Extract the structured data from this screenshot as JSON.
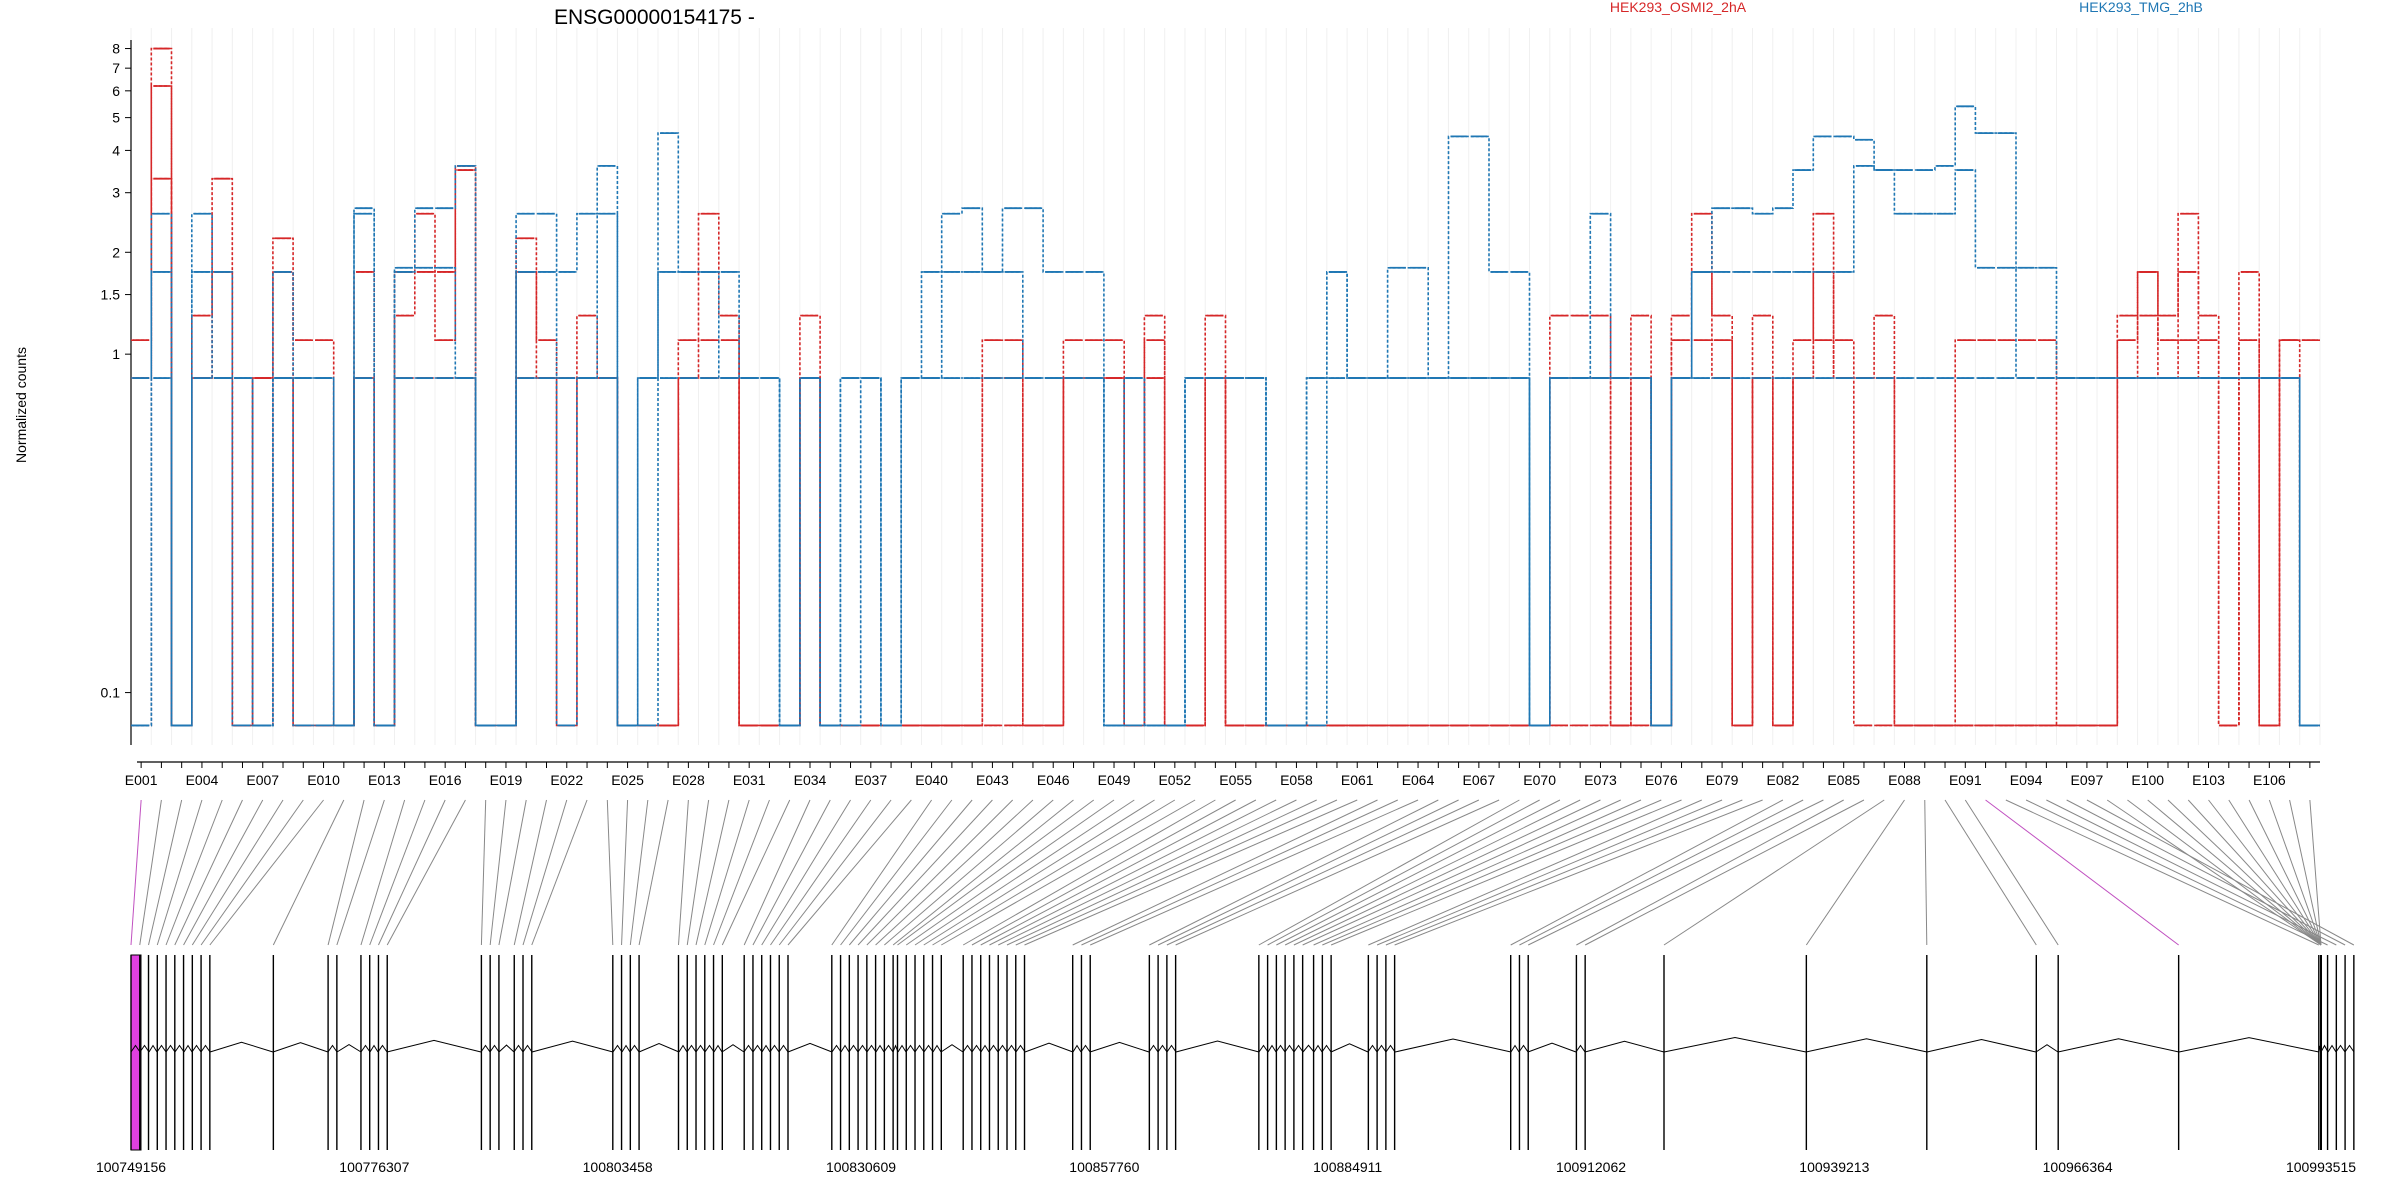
{
  "chart_data": {
    "type": "line",
    "title": "ENSG00000154175 -",
    "ylabel": "Normalized counts",
    "y_scale": "log",
    "yticks": [
      0.1,
      1,
      1.5,
      2,
      3,
      4,
      5,
      6,
      7,
      8
    ],
    "ytick_labels": [
      "0.1",
      "1",
      "1.5",
      "2",
      "3",
      "4",
      "5",
      "6",
      "7",
      "8"
    ],
    "series_colors": [
      "#d62728",
      "#1f77b4"
    ],
    "legend": [
      {
        "name": "HEK293_OSMI2_2hA",
        "color": "#d62728"
      },
      {
        "name": "HEK293_TMG_2hB",
        "color": "#1f77b4"
      }
    ],
    "exon_labels": [
      "E001",
      "E004",
      "E007",
      "E010",
      "E013",
      "E016",
      "E019",
      "E022",
      "E025",
      "E028",
      "E031",
      "E034",
      "E037",
      "E040",
      "E043",
      "E046",
      "E049",
      "E052",
      "E055",
      "E058",
      "E061",
      "E064",
      "E067",
      "E070",
      "E073",
      "E076",
      "E079",
      "E082",
      "E085",
      "E088",
      "E091",
      "E094",
      "E097",
      "E100",
      "E103",
      "E106"
    ],
    "genomic_ticks": [
      "100749156",
      "100776307",
      "100803458",
      "100830609",
      "100857760",
      "100884911",
      "100912062",
      "100939213",
      "100966364",
      "100993515"
    ],
    "genomic_range": [
      100749156,
      100993515
    ],
    "exon_count": 108,
    "series": [
      {
        "name": "HEK293_OSMI2_2hA",
        "sample": 1,
        "values": [
          1.1,
          8,
          0.08,
          1.3,
          3.3,
          0.08,
          0.85,
          2.2,
          1.1,
          1.1,
          0.08,
          1.75,
          0.08,
          1.75,
          2.6,
          1.75,
          3.6,
          0.08,
          0.08,
          2.2,
          1.1,
          0.85,
          1.3,
          0.85,
          0.08,
          0.08,
          0.08,
          1.1,
          2.6,
          1.3,
          0.08,
          0.08,
          0.08,
          1.3,
          0.08,
          0.08,
          0.08,
          0.08,
          0.08,
          0.08,
          0.08,
          0.08,
          1.1,
          1.1,
          0.08,
          0.08,
          1.1,
          1.1,
          1.1,
          0.08,
          1.3,
          0.08,
          0.08,
          1.3,
          0.08,
          0.08,
          0.08,
          0.08,
          0.08,
          0.08,
          0.08,
          0.08,
          0.08,
          0.08,
          0.08,
          0.08,
          0.08,
          0.08,
          0.08,
          0.08,
          1.3,
          1.3,
          1.3,
          0.08,
          1.3,
          0.08,
          1.3,
          2.6,
          1.3,
          0.08,
          1.3,
          0.08,
          1.1,
          2.6,
          1.1,
          0.85,
          1.3,
          0.08,
          0.08,
          0.08,
          0.08,
          0.08,
          0.08,
          0.08,
          0.08,
          0.08,
          0.08,
          0.08,
          1.3,
          1.75,
          1.3,
          2.6,
          1.3,
          0.08,
          1.75,
          0.08,
          1.1,
          1.1
        ]
      },
      {
        "name": "HEK293_OSMI2_2hA",
        "sample": 2,
        "values": [
          0.85,
          6.2,
          0.08,
          0.85,
          1.75,
          0.08,
          0.85,
          1.75,
          0.08,
          0.08,
          0.08,
          0.85,
          0.08,
          1.3,
          1.75,
          1.1,
          3.5,
          0.08,
          0.08,
          1.75,
          0.85,
          0.08,
          0.85,
          0.85,
          0.08,
          0.08,
          0.08,
          0.85,
          1.1,
          1.1,
          0.08,
          0.08,
          0.08,
          0.85,
          0.08,
          0.08,
          0.08,
          0.08,
          0.08,
          0.08,
          0.08,
          0.08,
          0.85,
          0.85,
          0.08,
          0.08,
          0.85,
          0.85,
          0.85,
          0.08,
          1.1,
          0.08,
          0.08,
          0.85,
          0.08,
          0.08,
          0.08,
          0.08,
          0.08,
          0.08,
          0.08,
          0.08,
          0.08,
          0.08,
          0.08,
          0.08,
          0.08,
          0.08,
          0.08,
          0.08,
          0.85,
          0.85,
          0.85,
          0.08,
          0.85,
          0.08,
          1.1,
          1.75,
          1.1,
          0.08,
          0.85,
          0.08,
          0.85,
          1.75,
          0.85,
          0.85,
          0.85,
          0.08,
          0.08,
          0.08,
          1.1,
          1.1,
          1.1,
          1.1,
          1.1,
          0.08,
          0.08,
          0.08,
          1.1,
          1.75,
          1.1,
          1.75,
          1.1,
          0.08,
          1.1,
          0.08,
          1.1,
          0.08
        ]
      },
      {
        "name": "HEK293_OSMI2_2hA",
        "sample": 3,
        "values": [
          0.08,
          3.3,
          0.08,
          0.85,
          0.85,
          0.08,
          0.08,
          0.85,
          0.08,
          0.08,
          0.08,
          0.85,
          0.08,
          0.85,
          0.85,
          0.85,
          0.85,
          0.08,
          0.08,
          0.85,
          0.85,
          0.08,
          0.85,
          0.85,
          0.08,
          0.08,
          0.08,
          0.85,
          0.85,
          0.85,
          0.08,
          0.08,
          0.08,
          0.85,
          0.08,
          0.08,
          0.08,
          0.08,
          0.08,
          0.08,
          0.08,
          0.08,
          0.08,
          0.08,
          0.08,
          0.08,
          0.85,
          0.85,
          0.85,
          0.08,
          0.85,
          0.08,
          0.08,
          0.85,
          0.08,
          0.08,
          0.08,
          0.08,
          0.08,
          0.08,
          0.08,
          0.08,
          0.08,
          0.08,
          0.08,
          0.08,
          0.08,
          0.08,
          0.08,
          0.08,
          0.08,
          0.08,
          0.08,
          0.08,
          0.08,
          0.08,
          0.85,
          1.1,
          0.85,
          0.08,
          0.85,
          0.08,
          0.85,
          1.1,
          0.85,
          0.08,
          0.08,
          0.08,
          0.08,
          0.08,
          0.08,
          0.08,
          0.08,
          0.08,
          0.08,
          0.08,
          0.08,
          0.08,
          0.85,
          1.3,
          0.85,
          1.1,
          0.85,
          0.08,
          0.85,
          0.08,
          0.85,
          0.08
        ]
      },
      {
        "name": "HEK293_TMG_2hB",
        "sample": 1,
        "values": [
          0.85,
          2.6,
          0.08,
          2.6,
          1.75,
          0.85,
          0.08,
          0.85,
          0.85,
          0.85,
          0.08,
          2.7,
          0.08,
          1.8,
          2.7,
          2.7,
          3.6,
          0.08,
          0.08,
          2.6,
          2.6,
          1.75,
          2.6,
          3.6,
          0.08,
          0.85,
          4.5,
          1.75,
          1.75,
          1.75,
          0.85,
          0.85,
          0.08,
          0.85,
          0.08,
          0.85,
          0.85,
          0.08,
          0.85,
          1.75,
          2.6,
          2.7,
          1.75,
          2.7,
          2.7,
          1.75,
          1.75,
          1.75,
          0.08,
          0.85,
          0.08,
          0.08,
          0.85,
          0.85,
          0.85,
          0.85,
          0.08,
          0.08,
          0.85,
          1.75,
          0.85,
          0.85,
          1.8,
          1.8,
          0.85,
          4.4,
          4.4,
          1.75,
          1.75,
          0.08,
          0.85,
          0.85,
          2.6,
          0.85,
          0.85,
          0.08,
          0.85,
          1.75,
          2.7,
          2.7,
          2.6,
          2.7,
          3.5,
          4.4,
          4.4,
          4.3,
          3.5,
          3.5,
          3.5,
          3.6,
          5.4,
          4.5,
          4.5,
          1.8,
          1.8,
          0.85,
          0.85,
          0.85,
          0.85,
          0.85,
          0.85,
          0.85,
          0.85,
          0.85,
          0.85,
          0.85,
          0.85,
          0.08
        ]
      },
      {
        "name": "HEK293_TMG_2hB",
        "sample": 2,
        "values": [
          0.08,
          1.75,
          0.08,
          1.75,
          0.85,
          0.85,
          0.08,
          1.75,
          0.85,
          0.85,
          0.08,
          2.6,
          0.08,
          1.75,
          1.8,
          1.8,
          0.85,
          0.08,
          0.08,
          1.75,
          1.75,
          0.85,
          0.85,
          2.6,
          0.08,
          0.85,
          1.75,
          1.75,
          1.75,
          0.85,
          0.85,
          0.85,
          0.08,
          0.85,
          0.08,
          0.85,
          0.85,
          0.08,
          0.85,
          0.85,
          1.75,
          1.75,
          1.75,
          1.75,
          0.85,
          0.85,
          0.85,
          0.85,
          0.08,
          0.85,
          0.08,
          0.08,
          0.85,
          0.85,
          0.85,
          0.85,
          0.08,
          0.08,
          0.85,
          1.75,
          0.85,
          0.85,
          0.85,
          0.85,
          0.85,
          0.85,
          0.85,
          0.85,
          0.85,
          0.08,
          0.85,
          0.85,
          0.85,
          0.85,
          0.85,
          0.08,
          0.85,
          1.75,
          1.75,
          1.75,
          1.75,
          1.75,
          1.75,
          1.75,
          1.75,
          3.6,
          3.5,
          2.6,
          2.6,
          2.6,
          3.5,
          1.8,
          1.8,
          0.85,
          0.85,
          0.85,
          0.85,
          0.85,
          0.85,
          0.85,
          0.85,
          0.85,
          0.85,
          0.85,
          0.85,
          0.85,
          0.85,
          0.08
        ]
      },
      {
        "name": "HEK293_TMG_2hB",
        "sample": 3,
        "values": [
          0.08,
          0.85,
          0.08,
          0.85,
          0.85,
          0.08,
          0.08,
          0.85,
          0.08,
          0.08,
          0.08,
          0.85,
          0.08,
          0.85,
          0.85,
          0.85,
          0.85,
          0.08,
          0.08,
          0.85,
          0.85,
          0.08,
          0.85,
          0.85,
          0.08,
          0.08,
          0.85,
          0.85,
          0.85,
          0.85,
          0.85,
          0.85,
          0.08,
          0.85,
          0.08,
          0.08,
          0.85,
          0.08,
          0.85,
          0.85,
          0.85,
          0.85,
          0.85,
          0.85,
          0.85,
          0.85,
          0.85,
          0.85,
          0.08,
          0.08,
          0.08,
          0.08,
          0.85,
          0.85,
          0.85,
          0.85,
          0.08,
          0.08,
          0.08,
          0.85,
          0.85,
          0.85,
          0.85,
          0.85,
          0.85,
          0.85,
          0.85,
          0.85,
          0.85,
          0.08,
          0.85,
          0.85,
          0.85,
          0.85,
          0.85,
          0.08,
          0.85,
          0.85,
          0.85,
          0.85,
          0.85,
          0.85,
          0.85,
          0.85,
          0.85,
          0.85,
          0.85,
          0.85,
          0.85,
          0.85,
          0.85,
          0.85,
          0.85,
          0.85,
          0.85,
          0.85,
          0.85,
          0.85,
          0.85,
          0.85,
          0.85,
          0.85,
          0.85,
          0.85,
          0.85,
          0.85,
          0.85,
          0.08
        ]
      }
    ]
  }
}
